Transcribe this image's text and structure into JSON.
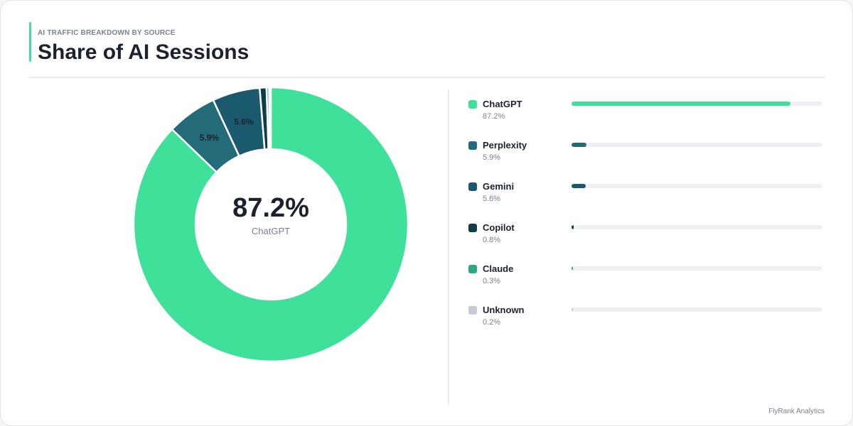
{
  "header": {
    "subtitle": "AI TRAFFIC BREAKDOWN BY SOURCE",
    "title": "Share of AI Sessions",
    "accent_color": "#3ee09a"
  },
  "center": {
    "value": "87.2%",
    "label": "ChatGPT"
  },
  "footer": {
    "text": "FlyRank Analytics"
  },
  "chart_data": {
    "type": "pie",
    "donut": true,
    "title": "Share of AI Sessions",
    "subtitle": "AI TRAFFIC BREAKDOWN BY SOURCE",
    "unit": "%",
    "categories": [
      "ChatGPT",
      "Perplexity",
      "Gemini",
      "Copilot",
      "Claude",
      "Unknown"
    ],
    "values": [
      87.2,
      5.9,
      5.6,
      0.8,
      0.3,
      0.2
    ],
    "value_labels": [
      "87.2%",
      "5.9%",
      "5.6%",
      "0.8%",
      "0.3%",
      "0.2%"
    ],
    "colors": [
      "#3ee09a",
      "#236b78",
      "#1b5a6e",
      "#0e3d48",
      "#2ba884",
      "#c5cbd6"
    ],
    "slice_labels_shown": [
      "5.9%",
      "5.6%"
    ],
    "legend_position": "right"
  }
}
